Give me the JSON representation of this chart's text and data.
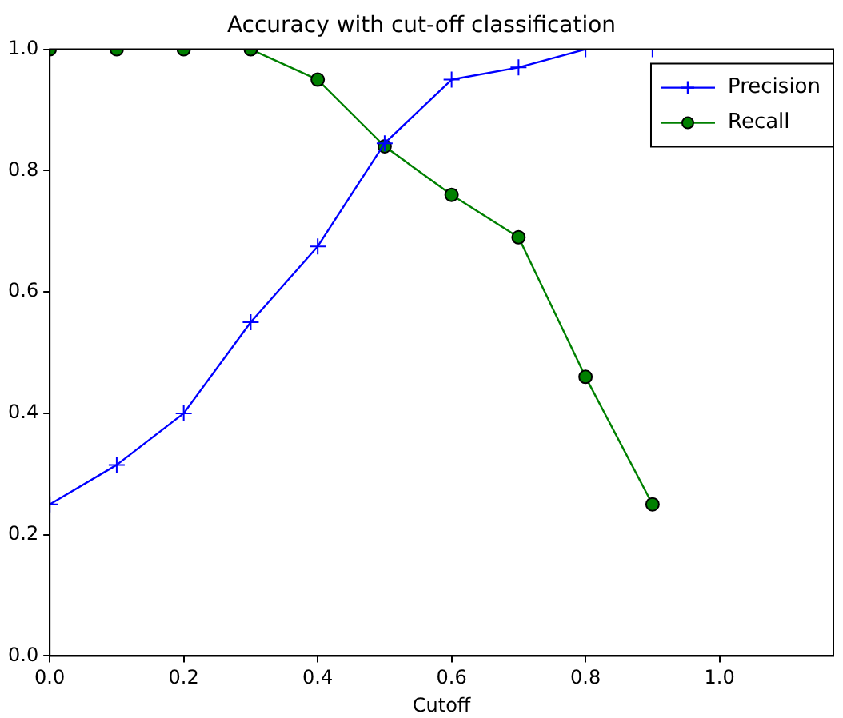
{
  "chart_data": {
    "type": "line",
    "title": "Accuracy with cut-off classification",
    "xlabel": "Cutoff",
    "x": [
      0,
      0.1,
      0.2,
      0.3,
      0.4,
      0.5,
      0.6,
      0.7,
      0.8,
      0.9
    ],
    "series": [
      {
        "name": "Precision",
        "color": "#0000ff",
        "marker": "cross",
        "values": [
          0.25,
          0.315,
          0.4,
          0.55,
          0.675,
          0.845,
          0.95,
          0.97,
          1.0,
          1.0
        ]
      },
      {
        "name": "Recall",
        "color": "#008000",
        "marker": "circle",
        "values": [
          1.0,
          1.0,
          1.0,
          1.0,
          0.95,
          0.84,
          0.76,
          0.69,
          0.46,
          0.25
        ]
      }
    ],
    "xlim": [
      0,
      1.17
    ],
    "xticks": [
      {
        "value": 0,
        "label": "0.0"
      },
      {
        "value": 0.2,
        "label": "0.2"
      },
      {
        "value": 0.4,
        "label": "0.4"
      },
      {
        "value": 0.6,
        "label": "0.6"
      },
      {
        "value": 0.8,
        "label": "0.8"
      },
      {
        "value": 1,
        "label": "1.0"
      }
    ],
    "ylim": [
      0,
      1
    ],
    "yticks": [
      {
        "value": 0,
        "label": "0.0"
      },
      {
        "value": 0.2,
        "label": "0.2"
      },
      {
        "value": 0.4,
        "label": "0.4"
      },
      {
        "value": 0.6,
        "label": "0.6"
      },
      {
        "value": 0.8,
        "label": "0.8"
      },
      {
        "value": 1,
        "label": "1.0"
      }
    ],
    "grid": false,
    "legend": "top right",
    "line_style": "solid"
  }
}
